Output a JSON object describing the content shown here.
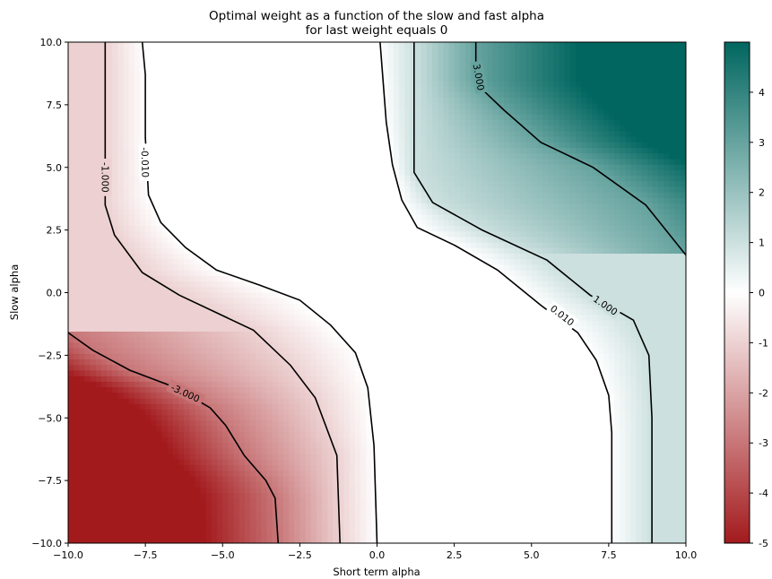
{
  "chart_data": {
    "type": "contourf",
    "title": "Optimal weight as a function of the slow and fast alpha",
    "subtitle": "for last weight equals 0",
    "xlabel": "Short term alpha",
    "ylabel": "Slow alpha",
    "xlim": [
      -10,
      10
    ],
    "ylim": [
      -10,
      10
    ],
    "x_ticks": [
      -10,
      -7.5,
      -5,
      -2.5,
      0,
      2.5,
      5,
      7.5,
      10
    ],
    "x_tick_labels": [
      "−10.0",
      "−7.5",
      "−5.0",
      "−2.5",
      "0.0",
      "2.5",
      "5.0",
      "7.5",
      "10.0"
    ],
    "y_ticks": [
      -10,
      -7.5,
      -5,
      -2.5,
      0,
      2.5,
      5,
      7.5,
      10
    ],
    "y_tick_labels": [
      "−10.0",
      "−7.5",
      "−5.0",
      "−2.5",
      "0.0",
      "2.5",
      "5.0",
      "7.5",
      "10.0"
    ],
    "colorbar": {
      "range": [
        -5,
        5
      ],
      "ticks": [
        -5,
        -4,
        -3,
        -2,
        -1,
        0,
        1,
        2,
        3,
        4
      ],
      "tick_labels": [
        "-5",
        "-4",
        "-3",
        "-2",
        "-1",
        "0",
        "1",
        "2",
        "3",
        "4"
      ],
      "color_low": "#a31a1d",
      "color_mid": "#ffffff",
      "color_high": "#00665f"
    },
    "contour_lines": [
      {
        "level": -3,
        "label": "-3.000",
        "points": [
          [
            -10,
            -1.6
          ],
          [
            -9.2,
            -2.3
          ],
          [
            -8,
            -3.1
          ],
          [
            -6.5,
            -3.8
          ],
          [
            -5.4,
            -4.6
          ],
          [
            -4.9,
            -5.3
          ],
          [
            -4.3,
            -6.5
          ],
          [
            -3.6,
            -7.5
          ],
          [
            -3.3,
            -8.2
          ],
          [
            -3.2,
            -10
          ]
        ]
      },
      {
        "level": -1,
        "label": "-1.000",
        "points": [
          [
            -8.8,
            10
          ],
          [
            -8.8,
            5.5
          ],
          [
            -8.8,
            3.5
          ],
          [
            -8.5,
            2.3
          ],
          [
            -7.6,
            0.8
          ],
          [
            -6.4,
            -0.1
          ],
          [
            -5.2,
            -0.8
          ],
          [
            -4,
            -1.5
          ],
          [
            -2.8,
            -2.9
          ],
          [
            -2,
            -4.2
          ],
          [
            -1.3,
            -6.5
          ],
          [
            -1.2,
            -10
          ]
        ]
      },
      {
        "level": -0.01,
        "label": "-0.010",
        "points": [
          [
            -7.6,
            10
          ],
          [
            -7.5,
            8.7
          ],
          [
            -7.5,
            6.2
          ],
          [
            -7.4,
            3.9
          ],
          [
            -7,
            2.8
          ],
          [
            -6.2,
            1.8
          ],
          [
            -5.2,
            0.9
          ],
          [
            -3.8,
            0.3
          ],
          [
            -2.5,
            -0.3
          ],
          [
            -1.5,
            -1.3
          ],
          [
            -0.7,
            -2.4
          ],
          [
            -0.3,
            -3.8
          ],
          [
            -0.1,
            -6.1
          ],
          [
            0,
            -10
          ]
        ]
      },
      {
        "level": 0.01,
        "label": "0.010",
        "points": [
          [
            0.1,
            10
          ],
          [
            0.3,
            6.8
          ],
          [
            0.5,
            5.1
          ],
          [
            0.8,
            3.7
          ],
          [
            1.3,
            2.6
          ],
          [
            2.5,
            1.9
          ],
          [
            3.9,
            0.9
          ],
          [
            4.6,
            0.2
          ],
          [
            5.3,
            -0.5
          ],
          [
            6.5,
            -1.6
          ],
          [
            7.1,
            -2.7
          ],
          [
            7.5,
            -4.1
          ],
          [
            7.6,
            -5.6
          ],
          [
            7.6,
            -10
          ]
        ]
      },
      {
        "level": 1,
        "label": "1.000",
        "points": [
          [
            1.2,
            10
          ],
          [
            1.2,
            6.5
          ],
          [
            1.2,
            4.8
          ],
          [
            1.8,
            3.6
          ],
          [
            3.4,
            2.5
          ],
          [
            5.5,
            1.3
          ],
          [
            6.9,
            -0.1
          ],
          [
            8.3,
            -1.1
          ],
          [
            8.8,
            -2.5
          ],
          [
            8.9,
            -5
          ],
          [
            8.9,
            -8
          ],
          [
            8.9,
            -10
          ]
        ]
      },
      {
        "level": 3,
        "label": "3.000",
        "points": [
          [
            3.2,
            10
          ],
          [
            3.2,
            8.5
          ],
          [
            3.5,
            8
          ],
          [
            4.1,
            7.3
          ],
          [
            5.3,
            6
          ],
          [
            7,
            5
          ],
          [
            8.7,
            3.5
          ],
          [
            10,
            1.5
          ]
        ]
      }
    ]
  }
}
